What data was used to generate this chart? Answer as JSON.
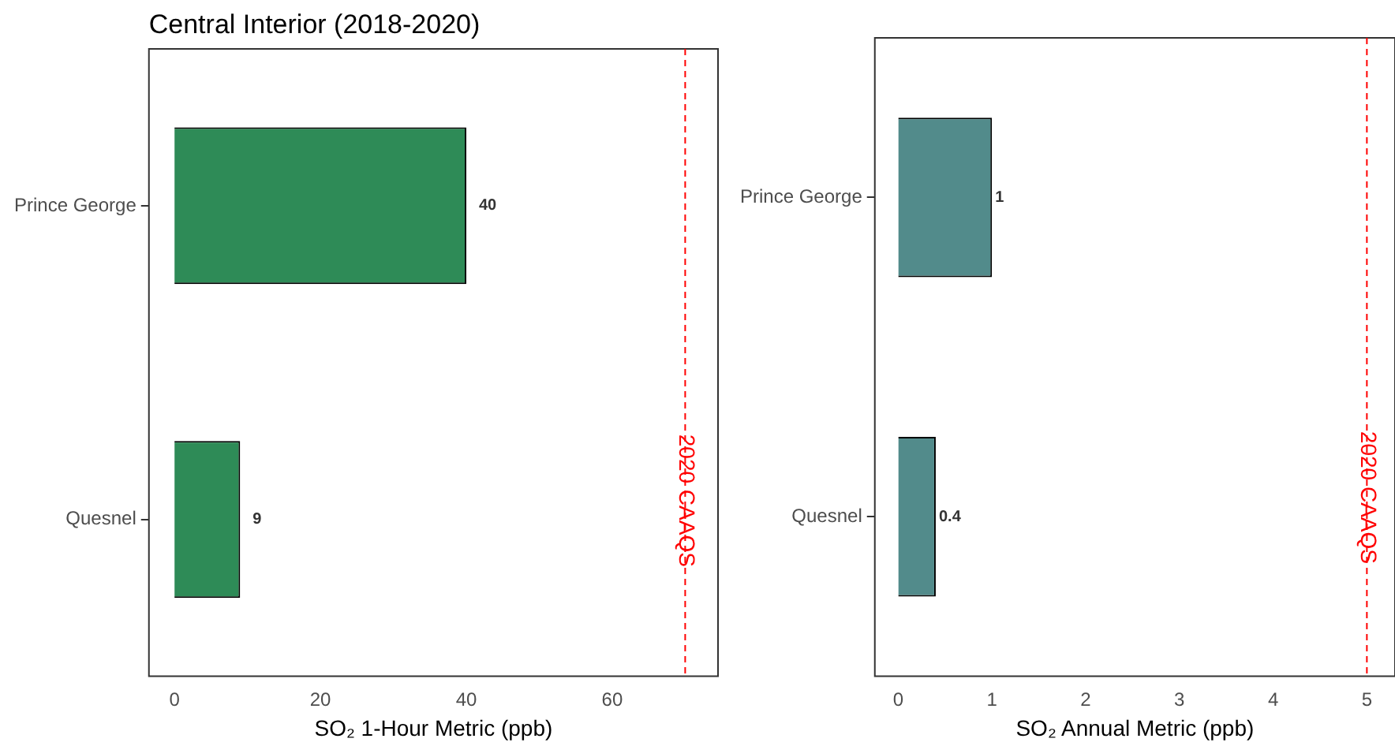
{
  "chart_data": [
    {
      "type": "bar",
      "orientation": "horizontal",
      "title": "Central Interior (2018-2020)",
      "xlabel": "SO₂ 1-Hour Metric (ppb)",
      "categories": [
        "Prince George",
        "Quesnel"
      ],
      "values": [
        40,
        9
      ],
      "color": "#2e8b57",
      "xlim": [
        -3.5,
        74.5
      ],
      "xticks": [
        0,
        20,
        40,
        60
      ],
      "data_labels": true,
      "ref_lines": [
        {
          "axis": "x",
          "value": 70,
          "label": "2020 CAAQS",
          "color": "#ff0000",
          "line_style": "dashed"
        }
      ]
    },
    {
      "type": "bar",
      "orientation": "horizontal",
      "xlabel": "SO₂ Annual Metric (ppb)",
      "categories": [
        "Prince George",
        "Quesnel"
      ],
      "values": [
        1,
        0.4
      ],
      "color": "#528b8b",
      "xlim": [
        -0.25,
        5.3
      ],
      "xticks": [
        0,
        1,
        2,
        3,
        4,
        5
      ],
      "data_labels": true,
      "ref_lines": [
        {
          "axis": "x",
          "value": 5,
          "label": "2020 CAAQS",
          "color": "#ff0000",
          "line_style": "dashed"
        }
      ]
    }
  ]
}
